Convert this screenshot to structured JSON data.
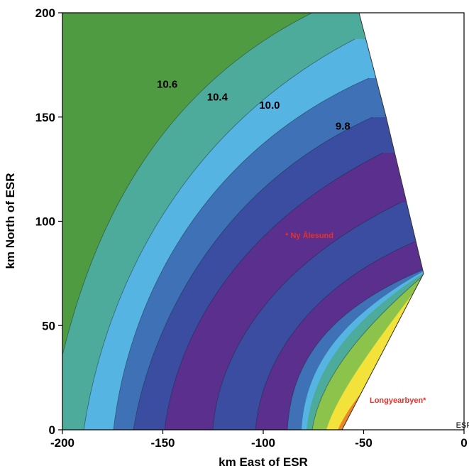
{
  "chart_data": {
    "type": "contour",
    "title": "",
    "xlabel": "km East of ESR",
    "ylabel": "km North of ESR",
    "xlim": [
      -200,
      0
    ],
    "ylim": [
      0,
      200
    ],
    "xticks": [
      "-200",
      "-150",
      "-100",
      "-50",
      "0"
    ],
    "yticks": [
      "0",
      "50",
      "100",
      "150",
      "200"
    ],
    "grid": false,
    "domain_boundary": [
      [
        -200,
        0
      ],
      [
        -200,
        200
      ],
      [
        -53,
        200
      ],
      [
        -40,
        156
      ],
      [
        -21,
        75
      ],
      [
        -41,
        0
      ]
    ],
    "contour_labels": [
      {
        "text": "10.6",
        "x": -153,
        "y": 164
      },
      {
        "text": "10.4",
        "x": -128,
        "y": 158
      },
      {
        "text": "10.0",
        "x": -102,
        "y": 154
      },
      {
        "text": "9.8",
        "x": -64,
        "y": 144
      }
    ],
    "annotations": [
      {
        "text": "* Ny Ålesund",
        "x": -89,
        "y": 92
      },
      {
        "text": "Longyearbyen*",
        "x": -47,
        "y": 13
      },
      {
        "text": "ESR",
        "x": -4,
        "y": 1
      }
    ],
    "colors": {
      "outer_green": "#4f9b42",
      "teal": "#4cab9a",
      "light_blue": "#56b4e2",
      "blue": "#3f71b6",
      "indigo": "#3a4da0",
      "purple": "#5a2f8e",
      "inner_green": "#8cc34a",
      "yellow": "#f2e23a",
      "orange": "#ec8727"
    }
  }
}
